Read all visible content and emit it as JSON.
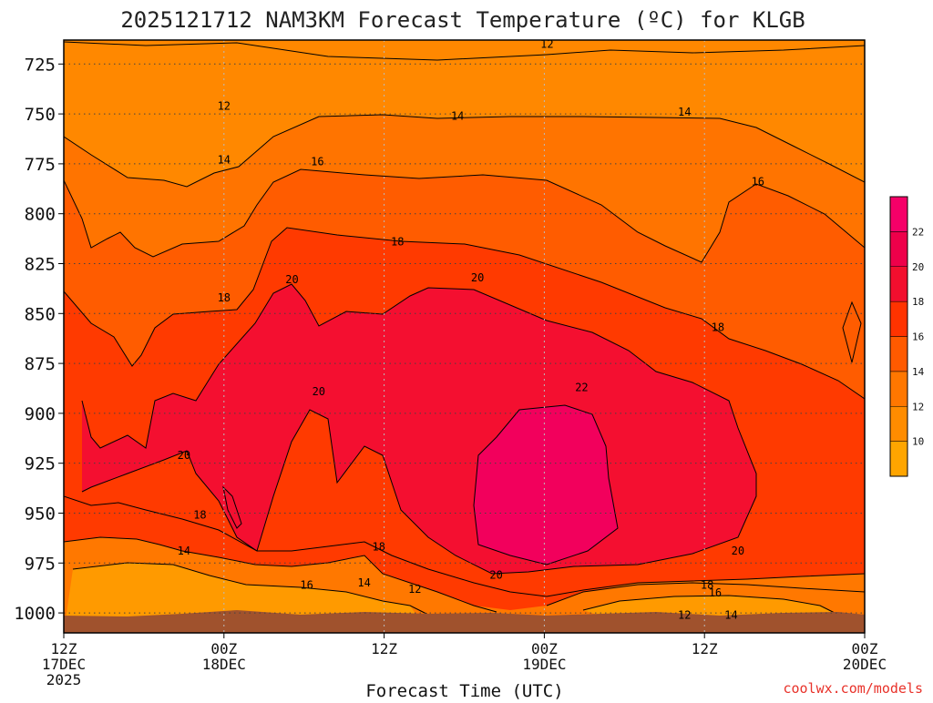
{
  "chart_data": {
    "type": "heatmap",
    "title": "2025121712 NAM3KM Forecast Temperature (ºC) for KLGB",
    "xlabel": "Forecast Time (UTC)",
    "ylabel": "",
    "credit": "coolwx.com/models",
    "x_ticks": [
      {
        "pos": 0,
        "lines": [
          "12Z",
          "17DEC",
          "2025"
        ]
      },
      {
        "pos": 12,
        "lines": [
          "00Z",
          "18DEC"
        ]
      },
      {
        "pos": 24,
        "lines": [
          "12Z"
        ]
      },
      {
        "pos": 36,
        "lines": [
          "00Z",
          "19DEC"
        ]
      },
      {
        "pos": 48,
        "lines": [
          "12Z"
        ]
      },
      {
        "pos": 60,
        "lines": [
          "00Z",
          "20DEC"
        ]
      }
    ],
    "x_range_hours": [
      0,
      60
    ],
    "y_ticks": [
      725,
      750,
      775,
      800,
      825,
      850,
      875,
      900,
      925,
      950,
      975,
      1000
    ],
    "y_range_hPa": [
      713,
      1010
    ],
    "y_reversed": true,
    "grid": true,
    "colorbar": {
      "labels": [
        "10",
        "12",
        "14",
        "16",
        "18",
        "20",
        "22"
      ],
      "colors": [
        "#ffa500",
        "#ff8c00",
        "#ff7700",
        "#ff5a00",
        "#ff3300",
        "#f20f2e",
        "#ee004a",
        "#f60068"
      ]
    },
    "ground_color": "#a0522d",
    "contour_labels": [
      {
        "text": "12",
        "h": 36.2,
        "p": 715
      },
      {
        "text": "12",
        "h": 12.0,
        "p": 746
      },
      {
        "text": "14",
        "h": 29.5,
        "p": 751
      },
      {
        "text": "14",
        "h": 46.5,
        "p": 749
      },
      {
        "text": "14",
        "h": 12.0,
        "p": 773
      },
      {
        "text": "16",
        "h": 19.0,
        "p": 774
      },
      {
        "text": "16",
        "h": 52.0,
        "p": 784
      },
      {
        "text": "18",
        "h": 25.0,
        "p": 814
      },
      {
        "text": "20",
        "h": 17.1,
        "p": 833
      },
      {
        "text": "20",
        "h": 31.0,
        "p": 832
      },
      {
        "text": "18",
        "h": 12.0,
        "p": 842
      },
      {
        "text": "18",
        "h": 49.0,
        "p": 857
      },
      {
        "text": "20",
        "h": 19.1,
        "p": 889
      },
      {
        "text": "22",
        "h": 38.8,
        "p": 887
      },
      {
        "text": "20",
        "h": 9.0,
        "p": 921
      },
      {
        "text": "18",
        "h": 10.2,
        "p": 951
      },
      {
        "text": "14",
        "h": 9.0,
        "p": 969
      },
      {
        "text": "18",
        "h": 23.6,
        "p": 967
      },
      {
        "text": "20",
        "h": 50.5,
        "p": 969
      },
      {
        "text": "16",
        "h": 18.2,
        "p": 986
      },
      {
        "text": "14",
        "h": 22.5,
        "p": 985
      },
      {
        "text": "12",
        "h": 26.3,
        "p": 988
      },
      {
        "text": "20",
        "h": 32.4,
        "p": 981
      },
      {
        "text": "18",
        "h": 48.2,
        "p": 986
      },
      {
        "text": "16",
        "h": 48.8,
        "p": 990
      },
      {
        "text": "12",
        "h": 46.5,
        "p": 1001
      },
      {
        "text": "14",
        "h": 50.0,
        "p": 1001
      }
    ]
  }
}
